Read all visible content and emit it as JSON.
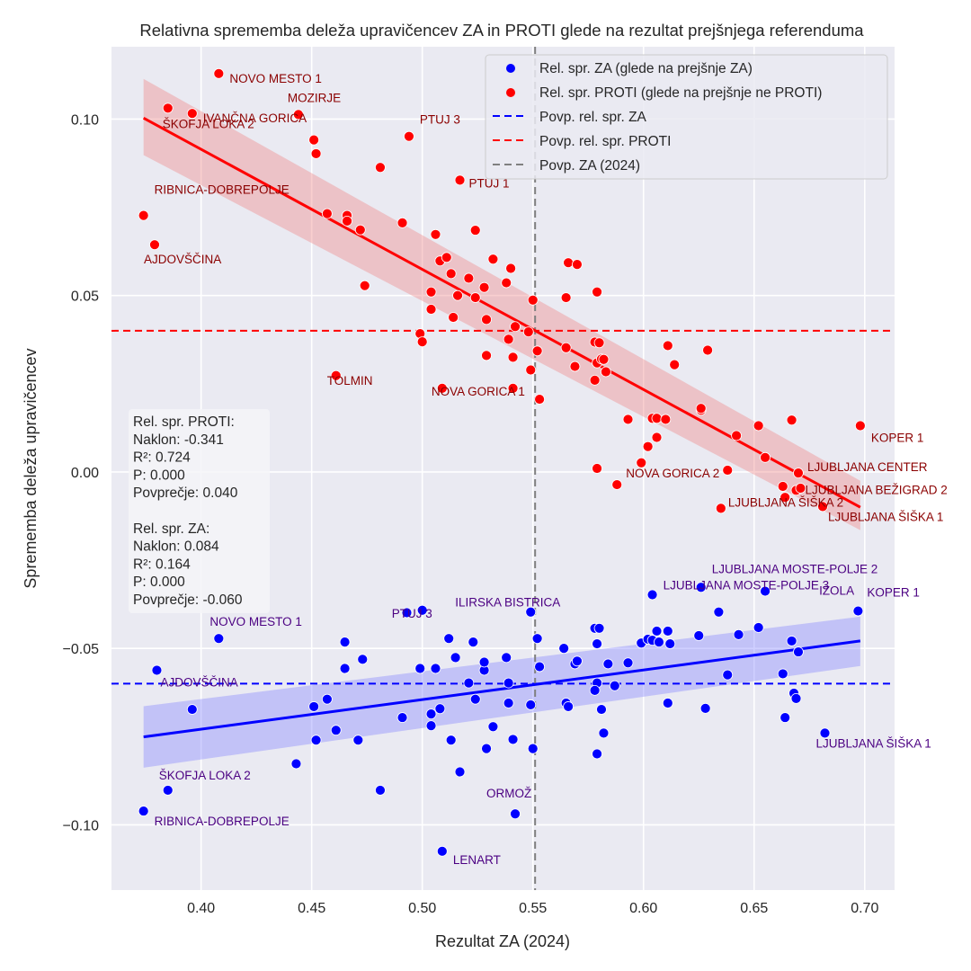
{
  "chart_data": {
    "type": "scatter",
    "title": "Relativna sprememba deleža upravičencev ZA in PROTI glede na rezultat prejšnjega referenduma",
    "xlabel": "Rezultat ZA (2024)",
    "ylabel": "Sprememba deleža upravičencev",
    "xlim": [
      0.3595,
      0.7135
    ],
    "ylim": [
      -0.1185,
      0.1205
    ],
    "xticks": [
      0.4,
      0.45,
      0.5,
      0.55,
      0.6,
      0.65,
      0.7
    ],
    "xtick_labels": [
      "0.40",
      "0.45",
      "0.50",
      "0.55",
      "0.60",
      "0.65",
      "0.70"
    ],
    "yticks": [
      0.1,
      0.05,
      0.0,
      -0.05,
      -0.1
    ],
    "ytick_labels": [
      "0.10",
      "0.05",
      "0.00",
      "−0.05",
      "−0.10"
    ],
    "grid": true,
    "legend_position": "top-right",
    "legend": [
      {
        "label": "Rel. spr. ZA (glede na prejšnje ZA)",
        "kind": "marker",
        "color": "#0000ff"
      },
      {
        "label": "Rel. spr. PROTI (glede na prejšnje ne PROTI)",
        "kind": "marker",
        "color": "#ff0000"
      },
      {
        "label": "Povp. rel. spr. ZA",
        "kind": "dash",
        "color": "#0000ff"
      },
      {
        "label": "Povp. rel. spr. PROTI",
        "kind": "dash",
        "color": "#ff0000"
      },
      {
        "label": "Povp. ZA (2024)",
        "kind": "dash",
        "color": "#808080"
      }
    ],
    "reference_lines": {
      "mean_za_change": -0.06,
      "mean_proti_change": 0.04,
      "mean_za_2024": 0.551
    },
    "regressions": [
      {
        "series": "PROTI",
        "color": "#ff0000",
        "band_color": "#f08080",
        "x": [
          0.374,
          0.698
        ],
        "y": [
          0.1003,
          -0.01
        ],
        "ci_low": [
          0.0898,
          -0.0165
        ],
        "ci_high": [
          0.1114,
          -0.0025
        ]
      },
      {
        "series": "ZA",
        "color": "#0000ff",
        "band_color": "#8080ff",
        "x": [
          0.374,
          0.698
        ],
        "y": [
          -0.0751,
          -0.0479
        ],
        "ci_low": [
          -0.0838,
          -0.055
        ],
        "ci_high": [
          -0.0664,
          -0.041
        ]
      }
    ],
    "stats_box": {
      "lines": [
        "Rel. spr. PROTI:",
        " Naklon: -0.341",
        " R²: 0.724",
        " P: 0.000",
        "Povprečje: 0.040",
        "",
        "Rel. spr. ZA:",
        " Naklon: 0.084",
        " R²: 0.164",
        " P: 0.000",
        "Povprečje: -0.060"
      ]
    },
    "series": [
      {
        "name": "Rel. spr. PROTI (glede na prejšnje ne PROTI)",
        "color": "#ff0000",
        "points": [
          [
            0.374,
            0.0727
          ],
          [
            0.379,
            0.0644
          ],
          [
            0.385,
            0.1031
          ],
          [
            0.396,
            0.1016
          ],
          [
            0.408,
            0.1129
          ],
          [
            0.444,
            0.1013
          ],
          [
            0.451,
            0.0941
          ],
          [
            0.452,
            0.0902
          ],
          [
            0.457,
            0.0732
          ],
          [
            0.466,
            0.0727
          ],
          [
            0.466,
            0.0711
          ],
          [
            0.472,
            0.0686
          ],
          [
            0.474,
            0.0528
          ],
          [
            0.461,
            0.0273
          ],
          [
            0.481,
            0.0863
          ],
          [
            0.491,
            0.0706
          ],
          [
            0.494,
            0.0951
          ],
          [
            0.499,
            0.0392
          ],
          [
            0.5,
            0.0369
          ],
          [
            0.504,
            0.051
          ],
          [
            0.504,
            0.0461
          ],
          [
            0.506,
            0.0673
          ],
          [
            0.508,
            0.0598
          ],
          [
            0.509,
            0.0237
          ],
          [
            0.511,
            0.0608
          ],
          [
            0.513,
            0.0562
          ],
          [
            0.514,
            0.0438
          ],
          [
            0.516,
            0.05
          ],
          [
            0.517,
            0.0827
          ],
          [
            0.521,
            0.0549
          ],
          [
            0.524,
            0.0685
          ],
          [
            0.524,
            0.0494
          ],
          [
            0.528,
            0.0523
          ],
          [
            0.529,
            0.0432
          ],
          [
            0.529,
            0.033
          ],
          [
            0.532,
            0.0603
          ],
          [
            0.538,
            0.0536
          ],
          [
            0.539,
            0.0376
          ],
          [
            0.54,
            0.0577
          ],
          [
            0.541,
            0.0325
          ],
          [
            0.541,
            0.0237
          ],
          [
            0.542,
            0.0412
          ],
          [
            0.548,
            0.0397
          ],
          [
            0.549,
            0.0289
          ],
          [
            0.55,
            0.0487
          ],
          [
            0.552,
            0.0343
          ],
          [
            0.553,
            0.0206
          ],
          [
            0.565,
            0.0494
          ],
          [
            0.565,
            0.0352
          ],
          [
            0.566,
            0.0593
          ],
          [
            0.569,
            0.0299
          ],
          [
            0.57,
            0.0588
          ],
          [
            0.579,
            0.051
          ],
          [
            0.578,
            0.0368
          ],
          [
            0.579,
            0.0309
          ],
          [
            0.58,
            0.0366
          ],
          [
            0.581,
            0.032
          ],
          [
            0.582,
            0.0319
          ],
          [
            0.583,
            0.0284
          ],
          [
            0.578,
            0.026
          ],
          [
            0.579,
            0.001
          ],
          [
            0.588,
            -0.0036
          ],
          [
            0.593,
            0.0149
          ],
          [
            0.599,
            0.0026
          ],
          [
            0.602,
            0.0072
          ],
          [
            0.604,
            0.0152
          ],
          [
            0.606,
            0.0152
          ],
          [
            0.606,
            0.0098
          ],
          [
            0.61,
            0.0149
          ],
          [
            0.611,
            0.0358
          ],
          [
            0.614,
            0.0304
          ],
          [
            0.626,
            0.0175
          ],
          [
            0.626,
            0.018
          ],
          [
            0.629,
            0.0345
          ],
          [
            0.635,
            -0.0103
          ],
          [
            0.638,
            0.0005
          ],
          [
            0.642,
            0.0103
          ],
          [
            0.652,
            0.0131
          ],
          [
            0.655,
            0.0041
          ],
          [
            0.663,
            -0.0041
          ],
          [
            0.664,
            -0.0072
          ],
          [
            0.667,
            0.0147
          ],
          [
            0.669,
            -0.0052
          ],
          [
            0.67,
            -0.0003
          ],
          [
            0.671,
            -0.0046
          ],
          [
            0.681,
            -0.0098
          ],
          [
            0.698,
            0.0131
          ]
        ],
        "labels": [
          {
            "text": "NOVO MESTO 1",
            "point": [
              0.408,
              0.1129
            ]
          },
          {
            "text": "ŠKOFJA LOKA 2",
            "point": [
              0.385,
              0.1031
            ]
          },
          {
            "text": "IVANČNA GORICA",
            "point": [
              0.396,
              0.1016
            ]
          },
          {
            "text": "MOZIRJE",
            "point": [
              0.444,
              0.1013
            ]
          },
          {
            "text": "PTUJ 3",
            "point": [
              0.494,
              0.0951
            ]
          },
          {
            "text": "PTUJ 1",
            "point": [
              0.517,
              0.0827
            ]
          },
          {
            "text": "RIBNICA-DOBREPOLJE",
            "point": [
              0.374,
              0.0727
            ]
          },
          {
            "text": "AJDOVŠČINA",
            "point": [
              0.379,
              0.0644
            ]
          },
          {
            "text": "TOLMIN",
            "point": [
              0.461,
              0.0273
            ]
          },
          {
            "text": "NOVA GORICA 1",
            "point": [
              0.509,
              0.0237
            ]
          },
          {
            "text": "NOVA GORICA 2",
            "point": [
              0.588,
              -0.0036
            ]
          },
          {
            "text": "KOPER 1",
            "point": [
              0.698,
              0.0131
            ]
          },
          {
            "text": "LJUBLJANA CENTER",
            "point": [
              0.67,
              -0.0003
            ]
          },
          {
            "text": "LJUBLJANA ŠIŠKA 2",
            "point": [
              0.635,
              -0.0103
            ]
          },
          {
            "text": "LJUBLJANA BEŽIGRAD 2",
            "point": [
              0.669,
              -0.0052
            ]
          },
          {
            "text": "LJUBLJANA ŠIŠKA 1",
            "point": [
              0.681,
              -0.0098
            ]
          }
        ]
      },
      {
        "name": "Rel. spr. ZA (glede na prejšnje ZA)",
        "color": "#0000ff",
        "points": [
          [
            0.374,
            -0.0961
          ],
          [
            0.38,
            -0.0562
          ],
          [
            0.385,
            -0.0902
          ],
          [
            0.396,
            -0.0673
          ],
          [
            0.408,
            -0.0472
          ],
          [
            0.443,
            -0.0827
          ],
          [
            0.451,
            -0.0665
          ],
          [
            0.452,
            -0.076
          ],
          [
            0.457,
            -0.0644
          ],
          [
            0.461,
            -0.0732
          ],
          [
            0.465,
            -0.0482
          ],
          [
            0.465,
            -0.0557
          ],
          [
            0.471,
            -0.076
          ],
          [
            0.473,
            -0.0531
          ],
          [
            0.481,
            -0.0902
          ],
          [
            0.491,
            -0.0696
          ],
          [
            0.493,
            -0.0399
          ],
          [
            0.499,
            -0.0557
          ],
          [
            0.5,
            -0.0392
          ],
          [
            0.504,
            -0.0686
          ],
          [
            0.504,
            -0.0719
          ],
          [
            0.506,
            -0.0557
          ],
          [
            0.508,
            -0.0671
          ],
          [
            0.509,
            -0.1075
          ],
          [
            0.512,
            -0.0472
          ],
          [
            0.513,
            -0.076
          ],
          [
            0.515,
            -0.0526
          ],
          [
            0.517,
            -0.085
          ],
          [
            0.521,
            -0.0598
          ],
          [
            0.523,
            -0.0482
          ],
          [
            0.524,
            -0.0644
          ],
          [
            0.528,
            -0.0562
          ],
          [
            0.528,
            -0.0539
          ],
          [
            0.529,
            -0.0784
          ],
          [
            0.532,
            -0.0722
          ],
          [
            0.538,
            -0.0526
          ],
          [
            0.539,
            -0.0598
          ],
          [
            0.539,
            -0.0655
          ],
          [
            0.541,
            -0.0758
          ],
          [
            0.542,
            -0.0969
          ],
          [
            0.549,
            -0.066
          ],
          [
            0.549,
            -0.0397
          ],
          [
            0.55,
            -0.0784
          ],
          [
            0.552,
            -0.0472
          ],
          [
            0.553,
            -0.0552
          ],
          [
            0.564,
            -0.05
          ],
          [
            0.565,
            -0.0655
          ],
          [
            0.566,
            -0.0665
          ],
          [
            0.569,
            -0.0544
          ],
          [
            0.57,
            -0.0536
          ],
          [
            0.578,
            -0.0443
          ],
          [
            0.579,
            -0.0487
          ],
          [
            0.579,
            -0.0598
          ],
          [
            0.578,
            -0.0619
          ],
          [
            0.579,
            -0.0799
          ],
          [
            0.58,
            -0.0443
          ],
          [
            0.581,
            -0.0673
          ],
          [
            0.582,
            -0.074
          ],
          [
            0.584,
            -0.0544
          ],
          [
            0.587,
            -0.0606
          ],
          [
            0.593,
            -0.0541
          ],
          [
            0.599,
            -0.0485
          ],
          [
            0.602,
            -0.0474
          ],
          [
            0.604,
            -0.0348
          ],
          [
            0.604,
            -0.0477
          ],
          [
            0.606,
            -0.0451
          ],
          [
            0.607,
            -0.0482
          ],
          [
            0.611,
            -0.0451
          ],
          [
            0.611,
            -0.0655
          ],
          [
            0.612,
            -0.0487
          ],
          [
            0.625,
            -0.0464
          ],
          [
            0.626,
            -0.0327
          ],
          [
            0.628,
            -0.067
          ],
          [
            0.634,
            -0.0397
          ],
          [
            0.638,
            -0.0575
          ],
          [
            0.643,
            -0.0461
          ],
          [
            0.652,
            -0.0441
          ],
          [
            0.655,
            -0.0338
          ],
          [
            0.663,
            -0.0572
          ],
          [
            0.664,
            -0.0696
          ],
          [
            0.667,
            -0.0479
          ],
          [
            0.668,
            -0.0627
          ],
          [
            0.669,
            -0.0642
          ],
          [
            0.67,
            -0.051
          ],
          [
            0.682,
            -0.074
          ],
          [
            0.697,
            -0.0394
          ]
        ],
        "labels": [
          {
            "text": "NOVO MESTO 1",
            "point": [
              0.408,
              -0.0472
            ]
          },
          {
            "text": "AJDOVŠČINA",
            "point": [
              0.38,
              -0.0562
            ]
          },
          {
            "text": "ŠKOFJA LOKA 2",
            "point": [
              0.385,
              -0.0902
            ]
          },
          {
            "text": "RIBNICA-DOBREPOLJE",
            "point": [
              0.374,
              -0.0961
            ]
          },
          {
            "text": "ILIRSKA BISTRICA",
            "point": [
              0.549,
              -0.0397
            ]
          },
          {
            "text": "PTUJ 3",
            "point": [
              0.5,
              -0.0392
            ]
          },
          {
            "text": "ORMOŽ",
            "point": [
              0.542,
              -0.0969
            ]
          },
          {
            "text": "LENART",
            "point": [
              0.509,
              -0.1075
            ]
          },
          {
            "text": "LJUBLJANA MOSTE-POLJE 3",
            "point": [
              0.604,
              -0.0348
            ]
          },
          {
            "text": "LJUBLJANA MOSTE-POLJE 2",
            "point": [
              0.626,
              -0.0327
            ]
          },
          {
            "text": "IZOLA",
            "point": [
              0.655,
              -0.0338
            ]
          },
          {
            "text": "KOPER 1",
            "point": [
              0.697,
              -0.0394
            ]
          },
          {
            "text": "LJUBLJANA ŠIŠKA 1",
            "point": [
              0.682,
              -0.074
            ]
          }
        ]
      }
    ]
  }
}
